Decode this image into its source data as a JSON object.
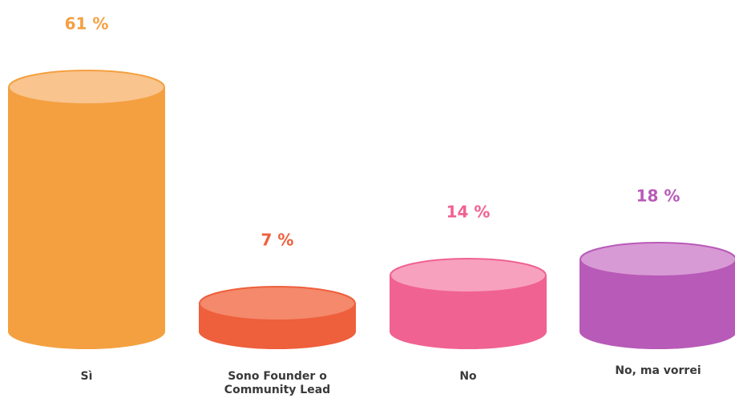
{
  "chart_data": {
    "type": "cylinder_bar",
    "categories": [
      "Sì",
      "Sono Founder o Community Lead",
      "No",
      "No, ma vorrei"
    ],
    "values": [
      61,
      7,
      14,
      18
    ],
    "value_labels": [
      "61 %",
      "7 %",
      "14 %",
      "18 %"
    ],
    "colors": [
      "#f4a040",
      "#ee5f3c",
      "#f06292",
      "#b85ab8"
    ],
    "top_colors": [
      "#f9c48e",
      "#f4896b",
      "#f7a1bf",
      "#d89ad5"
    ]
  }
}
